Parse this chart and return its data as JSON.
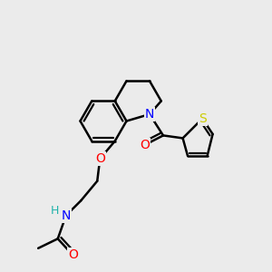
{
  "bg_color": "#ebebeb",
  "bond_color": "#000000",
  "bond_width": 1.8,
  "atom_colors": {
    "N": "#0000ff",
    "O": "#ff0000",
    "S": "#cccc00",
    "H": "#20b2aa",
    "C": "#000000"
  },
  "font_size": 10,
  "fig_width": 3.0,
  "fig_height": 3.0,
  "dpi": 100
}
